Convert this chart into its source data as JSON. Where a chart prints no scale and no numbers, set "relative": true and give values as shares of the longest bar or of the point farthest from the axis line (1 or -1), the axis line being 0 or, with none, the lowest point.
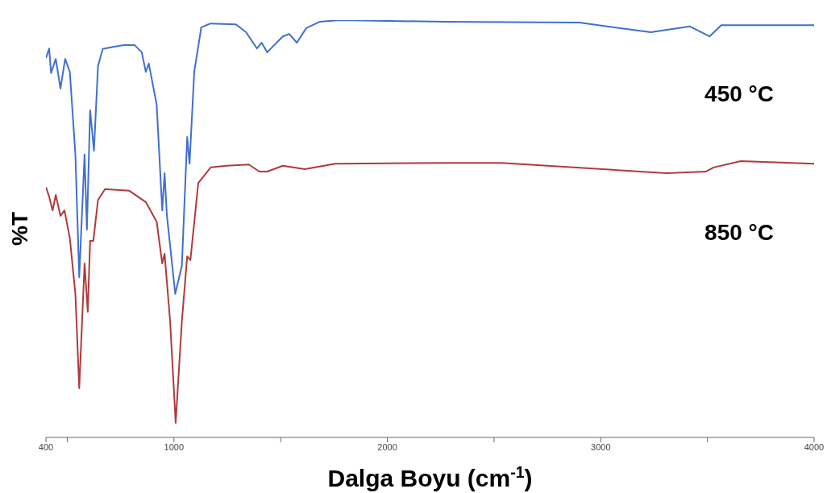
{
  "chart_data": {
    "type": "line",
    "relative": true,
    "xlabel": "Dalga Boyu (cm$^{-1}$)",
    "ylabel": "%T",
    "xlim": [
      400,
      4000
    ],
    "xticks": [
      400,
      {
        "value": 500,
        "label": null
      },
      1000,
      {
        "value": 1500,
        "label": null
      },
      2000,
      {
        "value": 2500,
        "label": null
      },
      3000,
      {
        "value": 3500,
        "label": null
      },
      4000
    ],
    "grid": false,
    "legend": false,
    "marker": "none",
    "line_style": "solid",
    "series": [
      {
        "name": "450 °C",
        "color": "#3f6fd1",
        "x": [
          400,
          415,
          424,
          446,
          468,
          490,
          512,
          538,
          556,
          581,
          592,
          607,
          625,
          644,
          666,
          714,
          765,
          816,
          849,
          868,
          882,
          919,
          945,
          956,
          967,
          1006,
          1037,
          1062,
          1073,
          1095,
          1128,
          1172,
          1290,
          1338,
          1389,
          1411,
          1437,
          1510,
          1540,
          1576,
          1620,
          1682,
          1778,
          2270,
          2900,
          3235,
          3418,
          3510,
          3565,
          4000
        ],
        "values": [
          0.909,
          0.932,
          0.873,
          0.907,
          0.836,
          0.907,
          0.876,
          0.678,
          0.384,
          0.678,
          0.498,
          0.784,
          0.687,
          0.89,
          0.931,
          0.936,
          0.94,
          0.94,
          0.923,
          0.876,
          0.896,
          0.797,
          0.544,
          0.633,
          0.531,
          0.344,
          0.411,
          0.72,
          0.656,
          0.876,
          0.983,
          0.992,
          0.99,
          0.971,
          0.932,
          0.946,
          0.923,
          0.961,
          0.967,
          0.946,
          0.981,
          0.996,
          1,
          0.996,
          0.994,
          0.971,
          0.985,
          0.961,
          0.988,
          0.988
        ]
      },
      {
        "name": "850 °C",
        "color": "#b03a3a",
        "x": [
          400,
          415,
          431,
          446,
          468,
          487,
          512,
          538,
          556,
          581,
          596,
          607,
          622,
          644,
          677,
          791,
          868,
          919,
          945,
          956,
          982,
          1008,
          1037,
          1062,
          1077,
          1114,
          1172,
          1246,
          1351,
          1400,
          1437,
          1510,
          1613,
          1756,
          2270,
          2537,
          3308,
          3492,
          3529,
          3657,
          4000
        ],
        "values": [
          0.6,
          0.577,
          0.544,
          0.581,
          0.531,
          0.544,
          0.477,
          0.344,
          0.118,
          0.417,
          0.301,
          0.471,
          0.471,
          0.569,
          0.595,
          0.591,
          0.564,
          0.517,
          0.417,
          0.44,
          0.278,
          0.035,
          0.278,
          0.434,
          0.425,
          0.61,
          0.647,
          0.651,
          0.654,
          0.637,
          0.637,
          0.651,
          0.643,
          0.656,
          0.658,
          0.658,
          0.633,
          0.637,
          0.647,
          0.662,
          0.656
        ]
      }
    ]
  }
}
